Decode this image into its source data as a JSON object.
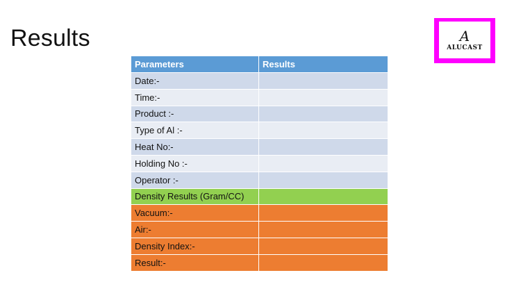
{
  "slide": {
    "title": "Results"
  },
  "logo": {
    "mark": "A",
    "text": "ALUCAST"
  },
  "table": {
    "headers": [
      "Parameters",
      "Results"
    ],
    "rows": [
      {
        "label": "Date:-",
        "value": ""
      },
      {
        "label": "Time:-",
        "value": ""
      },
      {
        "label": "Product :-",
        "value": ""
      },
      {
        "label": "Type of Al :-",
        "value": ""
      },
      {
        "label": "Heat No:-",
        "value": ""
      },
      {
        "label": "Holding No :-",
        "value": ""
      },
      {
        "label": "Operator :-",
        "value": ""
      },
      {
        "label": "Density Results (Gram/CC)",
        "value": ""
      },
      {
        "label": "Vacuum:-",
        "value": ""
      },
      {
        "label": "Air:-",
        "value": ""
      },
      {
        "label": "Density Index:-",
        "value": ""
      },
      {
        "label": "Result:-",
        "value": ""
      }
    ]
  },
  "colors": {
    "header": "#5b9bd5",
    "row_dark": "#cfd9ea",
    "row_light": "#e9edf4",
    "section_green": "#92d050",
    "section_orange": "#ed7d31",
    "logo_border": "#ff00ff"
  }
}
